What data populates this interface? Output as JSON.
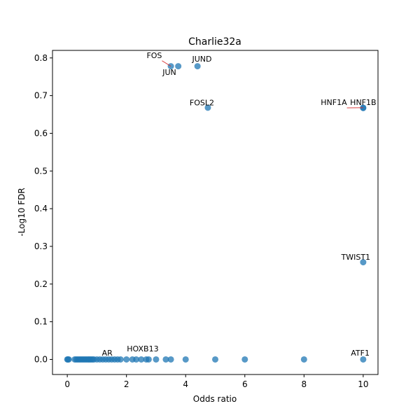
{
  "chart_data": {
    "type": "scatter",
    "title": "Charlie32a",
    "xlabel": "Odds ratio",
    "ylabel": "-Log10 FDR",
    "xlim": [
      -0.5,
      10.5
    ],
    "ylim": [
      -0.04,
      0.82
    ],
    "xticks": [
      0,
      2,
      4,
      6,
      8,
      10
    ],
    "yticks": [
      0.0,
      0.1,
      0.2,
      0.3,
      0.4,
      0.5,
      0.6,
      0.7,
      0.8
    ],
    "grid": false,
    "marker_color": "#1f77b4",
    "connector_color": "#d62728",
    "points": [
      {
        "x": 3.5,
        "y": 0.778
      },
      {
        "x": 3.75,
        "y": 0.778
      },
      {
        "x": 4.4,
        "y": 0.778
      },
      {
        "x": 4.75,
        "y": 0.668
      },
      {
        "x": 10,
        "y": 0.668
      },
      {
        "x": 10,
        "y": 0.667
      },
      {
        "x": 10,
        "y": 0.258
      },
      {
        "x": 0,
        "y": 0
      },
      {
        "x": 0.02,
        "y": 0
      },
      {
        "x": 0.05,
        "y": 0
      },
      {
        "x": 0.25,
        "y": 0
      },
      {
        "x": 0.3,
        "y": 0
      },
      {
        "x": 0.35,
        "y": 0
      },
      {
        "x": 0.4,
        "y": 0
      },
      {
        "x": 0.45,
        "y": 0
      },
      {
        "x": 0.5,
        "y": 0
      },
      {
        "x": 0.55,
        "y": 0
      },
      {
        "x": 0.6,
        "y": 0
      },
      {
        "x": 0.65,
        "y": 0
      },
      {
        "x": 0.7,
        "y": 0
      },
      {
        "x": 0.75,
        "y": 0
      },
      {
        "x": 0.8,
        "y": 0
      },
      {
        "x": 0.85,
        "y": 0
      },
      {
        "x": 0.9,
        "y": 0
      },
      {
        "x": 1.0,
        "y": 0
      },
      {
        "x": 1.1,
        "y": 0
      },
      {
        "x": 1.2,
        "y": 0
      },
      {
        "x": 1.3,
        "y": 0
      },
      {
        "x": 1.4,
        "y": 0
      },
      {
        "x": 1.5,
        "y": 0
      },
      {
        "x": 1.6,
        "y": 0
      },
      {
        "x": 1.7,
        "y": 0
      },
      {
        "x": 1.8,
        "y": 0
      },
      {
        "x": 2.0,
        "y": 0
      },
      {
        "x": 2.2,
        "y": 0
      },
      {
        "x": 2.33,
        "y": 0
      },
      {
        "x": 2.5,
        "y": 0
      },
      {
        "x": 2.67,
        "y": 0
      },
      {
        "x": 2.75,
        "y": 0
      },
      {
        "x": 3.0,
        "y": 0
      },
      {
        "x": 3.33,
        "y": 0
      },
      {
        "x": 3.5,
        "y": 0
      },
      {
        "x": 4.0,
        "y": 0
      },
      {
        "x": 5.0,
        "y": 0
      },
      {
        "x": 6.0,
        "y": 0
      },
      {
        "x": 8.0,
        "y": 0
      },
      {
        "x": 10.0,
        "y": 0
      }
    ],
    "annotations": [
      {
        "text": "FOS",
        "x": 3.5,
        "y": 0.778,
        "tx": 3.2,
        "ty": 0.8,
        "anchor": "end",
        "connector": true
      },
      {
        "text": "JUN",
        "x": 3.75,
        "y": 0.778,
        "tx": 3.45,
        "ty": 0.755,
        "anchor": "middle",
        "connector": false
      },
      {
        "text": "JUND",
        "x": 4.4,
        "y": 0.778,
        "tx": 4.55,
        "ty": 0.79,
        "anchor": "middle",
        "connector": false
      },
      {
        "text": "FOSL2",
        "x": 4.75,
        "y": 0.668,
        "tx": 4.55,
        "ty": 0.674,
        "anchor": "middle",
        "connector": false
      },
      {
        "text": "HNF1A",
        "x": 10,
        "y": 0.668,
        "tx": 9.45,
        "ty": 0.675,
        "anchor": "end",
        "connector": true
      },
      {
        "text": "HNF1B",
        "x": 10,
        "y": 0.667,
        "tx": 10.0,
        "ty": 0.675,
        "anchor": "middle",
        "connector": false
      },
      {
        "text": "TWIST1",
        "x": 10,
        "y": 0.258,
        "tx": 9.75,
        "ty": 0.265,
        "anchor": "middle",
        "connector": false
      },
      {
        "text": "ATF1",
        "x": 10,
        "y": 0,
        "tx": 9.9,
        "ty": 0.01,
        "anchor": "middle",
        "connector": false
      },
      {
        "text": "AR",
        "x": 1.4,
        "y": 0,
        "tx": 1.35,
        "ty": 0.01,
        "anchor": "middle",
        "connector": false
      },
      {
        "text": "HOXB13",
        "x": 2.5,
        "y": 0,
        "tx": 2.55,
        "ty": 0.021,
        "anchor": "middle",
        "connector": false
      }
    ]
  }
}
